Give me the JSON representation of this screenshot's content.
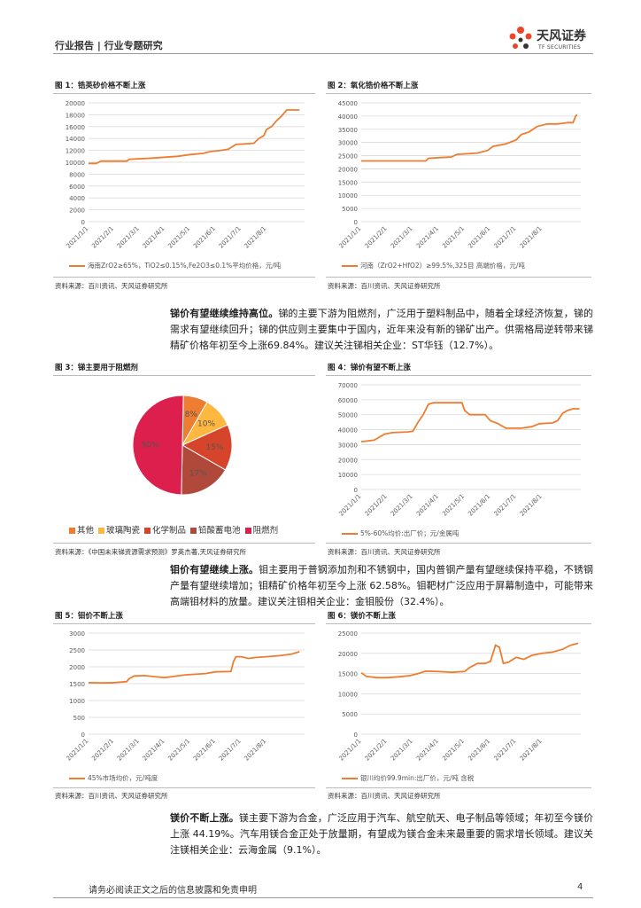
{
  "header": {
    "left": "行业报告 | 行业专题研究",
    "logo_cn": "天风证券",
    "logo_en": "TF SECURITIES"
  },
  "figures": {
    "f1": {
      "title": "图 1：锆英砂价格不断上涨",
      "source": "资料来源：百川资讯、天风证券研究所"
    },
    "f2": {
      "title": "图 2：氧化锆价格不断上涨",
      "source": "资料来源：百川资讯、天风证券研究所"
    },
    "f3": {
      "title": "图 3：锑主要用于阻燃剂",
      "source": "资料来源：《中国未来锑资源需求预测》罗英杰著,天风证券研究所"
    },
    "f4": {
      "title": "图 4：锑价有望不断上涨",
      "source": "资料来源：百川资讯、天风证券研究所"
    },
    "f5": {
      "title": "图 5：钼价不断上涨",
      "source": "资料来源：百川资讯、天风证券研究所"
    },
    "f6": {
      "title": "图 6：镁价不断上涨",
      "source": "资料来源：百川资讯、天风证券研究所"
    }
  },
  "paragraphs": {
    "p1_bold": "锑价有望继续维持高位。",
    "p1": "锑的主要下游为阻燃剂，广泛用于塑料制品中，随着全球经济恢复，锑的需求有望继续回升；锑的供应则主要集中于国内，近年来没有新的锑矿出产。供需格局逆转带来锑精矿价格年初至今上涨69.84%。建议关注锑相关企业：ST华钰（12.7%）。",
    "p2_bold": "钼价有望继续上涨。",
    "p2": "钼主要用于普钢添加剂和不锈钢中，国内普钢产量有望继续保持平稳，不锈钢产量有望继续增加；钼精矿价格年初至今上涨 62.58%。钼靶材广泛应用于屏幕制造中，可能带来高端钼材料的放量。建议关注钼相关企业：金钼股份（32.4%）。",
    "p3_bold": "镁价不断上涨。",
    "p3": "镁主要下游为合金，广泛应用于汽车、航空航天、电子制品等领域；年初至今镁价上涨 44.19%。汽车用镁合金正处于放量期，有望成为镁合金未来最重要的需求增长领域。建议关注镁相关企业：云海金属（9.1%）。"
  },
  "footer": {
    "disclaimer": "请务必阅读正文之后的信息披露和免责申明",
    "page": "4"
  },
  "colors": {
    "series": "#ED7D31",
    "grid": "#D9D9D9",
    "axis_text": "#595959"
  },
  "chart_data": [
    {
      "id": "f1",
      "type": "line",
      "legend": "海南ZrO2≥65%，TiO2≤0.15%,Fe2O3≤0.1%平均价格，元/吨",
      "x_ticks": [
        "2021/1/1",
        "2021/2/1",
        "2021/3/1",
        "2021/4/1",
        "2021/5/1",
        "2021/6/1",
        "2021/7/1",
        "2021/8/1"
      ],
      "y_ticks": [
        0,
        2000,
        4000,
        6000,
        8000,
        10000,
        12000,
        14000,
        16000,
        18000,
        20000
      ],
      "ylim": [
        0,
        20000
      ],
      "xmax": 8.5,
      "points": [
        [
          0,
          9800
        ],
        [
          0.3,
          9800
        ],
        [
          0.5,
          10200
        ],
        [
          1.5,
          10200
        ],
        [
          1.6,
          10500
        ],
        [
          2.5,
          10700
        ],
        [
          3.5,
          11000
        ],
        [
          4,
          11300
        ],
        [
          4.5,
          11500
        ],
        [
          4.8,
          11800
        ],
        [
          5.2,
          12000
        ],
        [
          5.5,
          12200
        ],
        [
          5.8,
          13000
        ],
        [
          6.5,
          13200
        ],
        [
          6.7,
          14000
        ],
        [
          6.9,
          14500
        ],
        [
          7.0,
          15500
        ],
        [
          7.2,
          16000
        ],
        [
          7.4,
          17000
        ],
        [
          7.6,
          17800
        ],
        [
          7.8,
          18800
        ],
        [
          8.3,
          18800
        ]
      ]
    },
    {
      "id": "f2",
      "type": "line",
      "legend": "河南（ZrO2+HfO2）≥99.5%,325目 高端价格，元/吨",
      "x_ticks": [
        "2021/1/1",
        "2021/2/1",
        "2021/3/1",
        "2021/4/1",
        "2021/5/1",
        "2021/6/1",
        "2021/7/1",
        "2021/8/1"
      ],
      "y_ticks": [
        0,
        5000,
        10000,
        15000,
        20000,
        25000,
        30000,
        35000,
        40000,
        45000
      ],
      "ylim": [
        0,
        45000
      ],
      "xmax": 8.5,
      "points": [
        [
          0,
          23000
        ],
        [
          2.5,
          23000
        ],
        [
          2.6,
          24000
        ],
        [
          3.5,
          24500
        ],
        [
          3.7,
          25500
        ],
        [
          4.5,
          26000
        ],
        [
          4.9,
          27000
        ],
        [
          5.1,
          28500
        ],
        [
          5.6,
          29500
        ],
        [
          6.0,
          31000
        ],
        [
          6.2,
          33000
        ],
        [
          6.5,
          34000
        ],
        [
          6.8,
          36000
        ],
        [
          7.2,
          37000
        ],
        [
          7.6,
          37000
        ],
        [
          8.0,
          37500
        ],
        [
          8.2,
          37500
        ],
        [
          8.3,
          40000
        ],
        [
          8.35,
          40500
        ]
      ]
    },
    {
      "id": "f3",
      "type": "pie",
      "labels": [
        "其他",
        "玻璃陶瓷",
        "化学制品",
        "铅酸蓄电池",
        "阻燃剂"
      ],
      "values": [
        8,
        10,
        15,
        17,
        50
      ],
      "value_labels": [
        "8%",
        "10%",
        "15%",
        "17%",
        "50%"
      ],
      "colors": [
        "#ED7D31",
        "#FFB83F",
        "#D6452B",
        "#B0493A",
        "#DC1F4C"
      ]
    },
    {
      "id": "f4",
      "type": "line",
      "legend": "5%-60%均价:出厂价；元/金属吨",
      "x_ticks": [
        "2021/1/1",
        "2021/2/1",
        "2021/3/1",
        "2021/4/1",
        "2021/5/1",
        "2021/6/1",
        "2021/7/1",
        "2021/8/1"
      ],
      "y_ticks": [
        0,
        10000,
        20000,
        30000,
        40000,
        50000,
        60000,
        70000
      ],
      "ylim": [
        0,
        70000
      ],
      "xmax": 8.5,
      "points": [
        [
          0,
          32000
        ],
        [
          0.5,
          33000
        ],
        [
          0.9,
          37000
        ],
        [
          1.2,
          38000
        ],
        [
          1.8,
          38500
        ],
        [
          2.0,
          39000
        ],
        [
          2.2,
          45000
        ],
        [
          2.4,
          50000
        ],
        [
          2.6,
          57000
        ],
        [
          2.8,
          58000
        ],
        [
          3.5,
          58000
        ],
        [
          3.9,
          58000
        ],
        [
          4.0,
          53000
        ],
        [
          4.2,
          50000
        ],
        [
          4.8,
          50000
        ],
        [
          5.0,
          46000
        ],
        [
          5.3,
          44000
        ],
        [
          5.6,
          41000
        ],
        [
          6.2,
          41000
        ],
        [
          6.6,
          42000
        ],
        [
          6.9,
          44000
        ],
        [
          7.4,
          44500
        ],
        [
          7.6,
          46000
        ],
        [
          7.8,
          51000
        ],
        [
          8.0,
          53000
        ],
        [
          8.2,
          54000
        ],
        [
          8.45,
          54000
        ]
      ]
    },
    {
      "id": "f5",
      "type": "line",
      "legend": "45%市场均价，元/吨度",
      "x_ticks": [
        "2021/1/1",
        "2021/2/1",
        "2021/3/1",
        "2021/4/1",
        "2021/5/1",
        "2021/6/1",
        "2021/7/1",
        "2021/8/1"
      ],
      "y_ticks": [
        0,
        500,
        1000,
        1500,
        2000,
        2500,
        3000
      ],
      "ylim": [
        0,
        3000
      ],
      "xmax": 8.5,
      "points": [
        [
          0,
          1530
        ],
        [
          0.5,
          1520
        ],
        [
          1.0,
          1530
        ],
        [
          1.5,
          1560
        ],
        [
          1.6,
          1650
        ],
        [
          1.8,
          1730
        ],
        [
          2.2,
          1740
        ],
        [
          2.7,
          1700
        ],
        [
          3.0,
          1680
        ],
        [
          3.4,
          1720
        ],
        [
          3.8,
          1760
        ],
        [
          4.2,
          1780
        ],
        [
          4.6,
          1800
        ],
        [
          5.0,
          1850
        ],
        [
          5.6,
          1860
        ],
        [
          5.7,
          2150
        ],
        [
          5.8,
          2300
        ],
        [
          6.0,
          2300
        ],
        [
          6.3,
          2250
        ],
        [
          6.6,
          2280
        ],
        [
          7.0,
          2300
        ],
        [
          7.5,
          2330
        ],
        [
          8.0,
          2380
        ],
        [
          8.3,
          2450
        ]
      ]
    },
    {
      "id": "f6",
      "type": "line",
      "legend": "银川均价99.9min:出厂价，元/吨 含税",
      "x_ticks": [
        "2021/1/1",
        "2021/2/1",
        "2021/3/1",
        "2021/4/1",
        "2021/5/1",
        "2021/6/1",
        "2021/7/1",
        "2021/8/1"
      ],
      "y_ticks": [
        0,
        5000,
        10000,
        15000,
        20000,
        25000
      ],
      "ylim": [
        0,
        25000
      ],
      "xmax": 8.5,
      "points": [
        [
          0,
          15200
        ],
        [
          0.2,
          14300
        ],
        [
          0.6,
          14000
        ],
        [
          1.0,
          14000
        ],
        [
          1.5,
          14200
        ],
        [
          1.9,
          14500
        ],
        [
          2.2,
          15000
        ],
        [
          2.5,
          15600
        ],
        [
          3.0,
          15500
        ],
        [
          3.5,
          15300
        ],
        [
          4.0,
          15500
        ],
        [
          4.2,
          16500
        ],
        [
          4.5,
          17500
        ],
        [
          4.8,
          17500
        ],
        [
          5.0,
          18000
        ],
        [
          5.2,
          22000
        ],
        [
          5.35,
          21500
        ],
        [
          5.5,
          17500
        ],
        [
          5.7,
          17800
        ],
        [
          6.0,
          19000
        ],
        [
          6.3,
          18500
        ],
        [
          6.6,
          19500
        ],
        [
          7.0,
          20000
        ],
        [
          7.4,
          20300
        ],
        [
          7.8,
          21000
        ],
        [
          8.1,
          22000
        ],
        [
          8.4,
          22500
        ]
      ]
    }
  ]
}
